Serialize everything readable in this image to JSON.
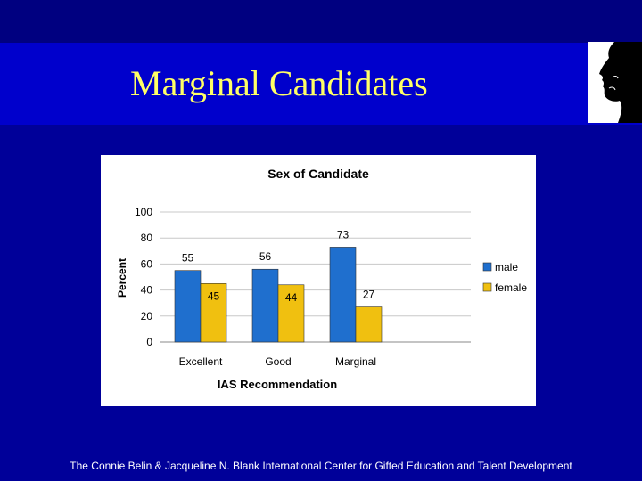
{
  "slide": {
    "title": "Marginal Candidates",
    "footer": "The Connie Belin & Jacqueline N. Blank International Center for Gifted Education and Talent Development"
  },
  "colors": {
    "background": "#000099",
    "title_band": "#0000cc",
    "title_text": "#ffff66",
    "male": "#1f6fce",
    "female": "#f0c010"
  },
  "icons": {
    "logo": "face-profile-silhouette-icon"
  },
  "chart_data": {
    "type": "bar",
    "title": "Sex of Candidate",
    "xlabel": "IAS Recommendation",
    "ylabel": "Percent",
    "categories": [
      "Excellent",
      "Good",
      "Marginal"
    ],
    "series": [
      {
        "name": "male",
        "values": [
          55,
          56,
          73
        ],
        "color": "#1f6fce"
      },
      {
        "name": "female",
        "values": [
          45,
          44,
          27
        ],
        "color": "#f0c010"
      }
    ],
    "ylim": [
      0,
      100
    ],
    "yticks": [
      0,
      20,
      40,
      60,
      80,
      100
    ],
    "grid": true,
    "legend": "right",
    "data_labels": true
  }
}
